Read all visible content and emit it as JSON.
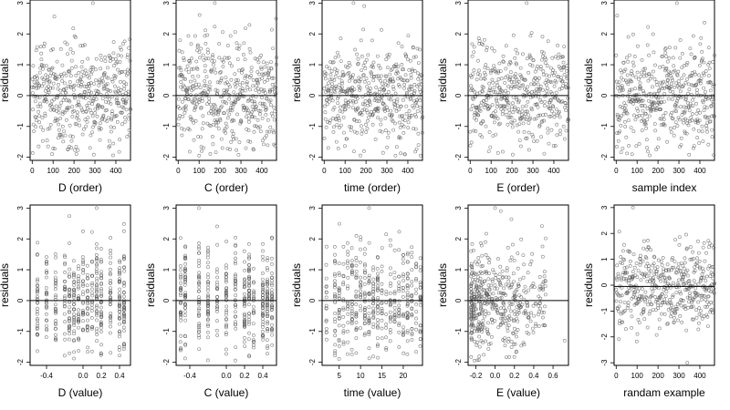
{
  "figure": {
    "background": "#ffffff",
    "point_color": "#555555",
    "line_color": "#000000"
  },
  "chart_data": [
    {
      "type": "scatter",
      "row": 0,
      "col": 0,
      "xlabel": "D (order)",
      "ylabel": "residuals",
      "xlim": [
        -10,
        470
      ],
      "ylim": [
        -2.1,
        3.1
      ],
      "xticks": [
        0,
        100,
        200,
        300,
        400
      ],
      "yticks": [
        -2,
        -1,
        0,
        1,
        2,
        3
      ],
      "hline": 0,
      "n_points": 470,
      "x_distribution": "uniform",
      "x_range": [
        0,
        470
      ],
      "highlight": [
        [
          290,
          3.0
        ]
      ]
    },
    {
      "type": "scatter",
      "row": 0,
      "col": 1,
      "xlabel": "C (order)",
      "ylabel": "residuals",
      "xlim": [
        -10,
        470
      ],
      "ylim": [
        -2.1,
        3.1
      ],
      "xticks": [
        0,
        100,
        200,
        300,
        400
      ],
      "yticks": [
        -2,
        -1,
        0,
        1,
        2,
        3
      ],
      "hline": 0,
      "n_points": 470,
      "x_distribution": "uniform",
      "x_range": [
        0,
        470
      ],
      "highlight": [
        [
          175,
          3.0
        ]
      ]
    },
    {
      "type": "scatter",
      "row": 0,
      "col": 2,
      "xlabel": "time (order)",
      "ylabel": "residuals",
      "xlim": [
        -10,
        470
      ],
      "ylim": [
        -2.1,
        3.1
      ],
      "xticks": [
        0,
        100,
        200,
        300,
        400
      ],
      "yticks": [
        -2,
        -1,
        0,
        1,
        2,
        3
      ],
      "hline": 0,
      "n_points": 470,
      "x_distribution": "uniform",
      "x_range": [
        0,
        470
      ],
      "highlight": [
        [
          140,
          3.0
        ]
      ]
    },
    {
      "type": "scatter",
      "row": 0,
      "col": 3,
      "xlabel": "E (order)",
      "ylabel": "residuals",
      "xlim": [
        -10,
        470
      ],
      "ylim": [
        -2.1,
        3.1
      ],
      "xticks": [
        0,
        100,
        200,
        300,
        400
      ],
      "yticks": [
        -2,
        -1,
        0,
        1,
        2,
        3
      ],
      "hline": 0,
      "n_points": 470,
      "x_distribution": "uniform",
      "x_range": [
        0,
        470
      ],
      "highlight": [
        [
          270,
          3.0
        ]
      ]
    },
    {
      "type": "scatter",
      "row": 0,
      "col": 4,
      "xlabel": "sample index",
      "ylabel": "residuals",
      "xlim": [
        -10,
        470
      ],
      "ylim": [
        -2.1,
        3.1
      ],
      "xticks": [
        0,
        100,
        200,
        300,
        400
      ],
      "yticks": [
        -2,
        -1,
        0,
        1,
        2,
        3
      ],
      "hline": 0,
      "n_points": 470,
      "x_distribution": "uniform",
      "x_range": [
        0,
        470
      ],
      "highlight": [
        [
          290,
          3.0
        ]
      ]
    },
    {
      "type": "scatter",
      "row": 1,
      "col": 0,
      "xlabel": "D (value)",
      "ylabel": "residuals",
      "xlim": [
        -0.58,
        0.52
      ],
      "ylim": [
        -2.1,
        3.1
      ],
      "xticks": [
        -0.4,
        0.0,
        0.2,
        0.4
      ],
      "yticks": [
        -2,
        -1,
        0,
        1,
        2,
        3
      ],
      "hline": 0,
      "n_points": 470,
      "x_distribution": "discrete",
      "x_levels": [
        -0.5,
        -0.4,
        -0.3,
        -0.2,
        -0.15,
        -0.1,
        -0.05,
        0.0,
        0.05,
        0.1,
        0.15,
        0.2,
        0.3,
        0.4,
        0.45
      ],
      "highlight": [
        [
          0.15,
          3.0
        ]
      ]
    },
    {
      "type": "scatter",
      "row": 1,
      "col": 1,
      "xlabel": "C (value)",
      "ylabel": "residuals",
      "xlim": [
        -0.55,
        0.55
      ],
      "ylim": [
        -2.1,
        3.1
      ],
      "xticks": [
        -0.4,
        0.0,
        0.2,
        0.4
      ],
      "yticks": [
        -2,
        -1,
        0,
        1,
        2,
        3
      ],
      "hline": 0,
      "n_points": 470,
      "x_distribution": "discrete",
      "x_levels": [
        -0.5,
        -0.45,
        -0.3,
        -0.2,
        -0.1,
        0.0,
        0.1,
        0.2,
        0.25,
        0.3,
        0.4,
        0.45,
        0.5
      ],
      "highlight": [
        [
          -0.3,
          3.0
        ]
      ]
    },
    {
      "type": "scatter",
      "row": 1,
      "col": 2,
      "xlabel": "time (value)",
      "ylabel": "residuals",
      "xlim": [
        1,
        24.5
      ],
      "ylim": [
        -2.1,
        3.1
      ],
      "xticks": [
        5,
        10,
        15,
        20
      ],
      "yticks": [
        -2,
        -1,
        0,
        1,
        2,
        3
      ],
      "hline": 0,
      "n_points": 470,
      "x_distribution": "discrete",
      "x_levels": [
        2,
        4,
        5,
        6,
        7,
        8,
        9,
        10,
        11,
        12,
        13,
        14,
        15,
        16,
        17,
        18,
        19,
        20,
        21,
        22,
        23,
        24
      ],
      "highlight": [
        [
          12,
          3.0
        ]
      ]
    },
    {
      "type": "scatter",
      "row": 1,
      "col": 3,
      "xlabel": "E (value)",
      "ylabel": "residuals",
      "xlim": [
        -0.28,
        0.76
      ],
      "ylim": [
        -2.1,
        3.1
      ],
      "xticks": [
        -0.2,
        0.0,
        0.2,
        0.4,
        0.6
      ],
      "yticks": [
        -2,
        -1,
        0,
        1,
        2,
        3
      ],
      "hline": 0,
      "n_points": 470,
      "x_distribution": "skewed",
      "x_range": [
        -0.25,
        0.72
      ],
      "highlight": [
        [
          0.0,
          3.0
        ],
        [
          0.72,
          -1.3
        ],
        [
          0.5,
          0.6
        ]
      ]
    },
    {
      "type": "scatter",
      "row": 1,
      "col": 4,
      "xlabel": "randam example",
      "ylabel": "residuals",
      "xlim": [
        -10,
        470
      ],
      "ylim": [
        -3.1,
        3.1
      ],
      "xticks": [
        0,
        100,
        200,
        300,
        400
      ],
      "yticks": [
        -3,
        -2,
        -1,
        0,
        1,
        2,
        3
      ],
      "hline": -0.05,
      "n_points": 470,
      "x_distribution": "uniform",
      "x_range": [
        0,
        470
      ],
      "highlight": [
        [
          80,
          3.0
        ],
        [
          340,
          -3.0
        ]
      ]
    }
  ]
}
